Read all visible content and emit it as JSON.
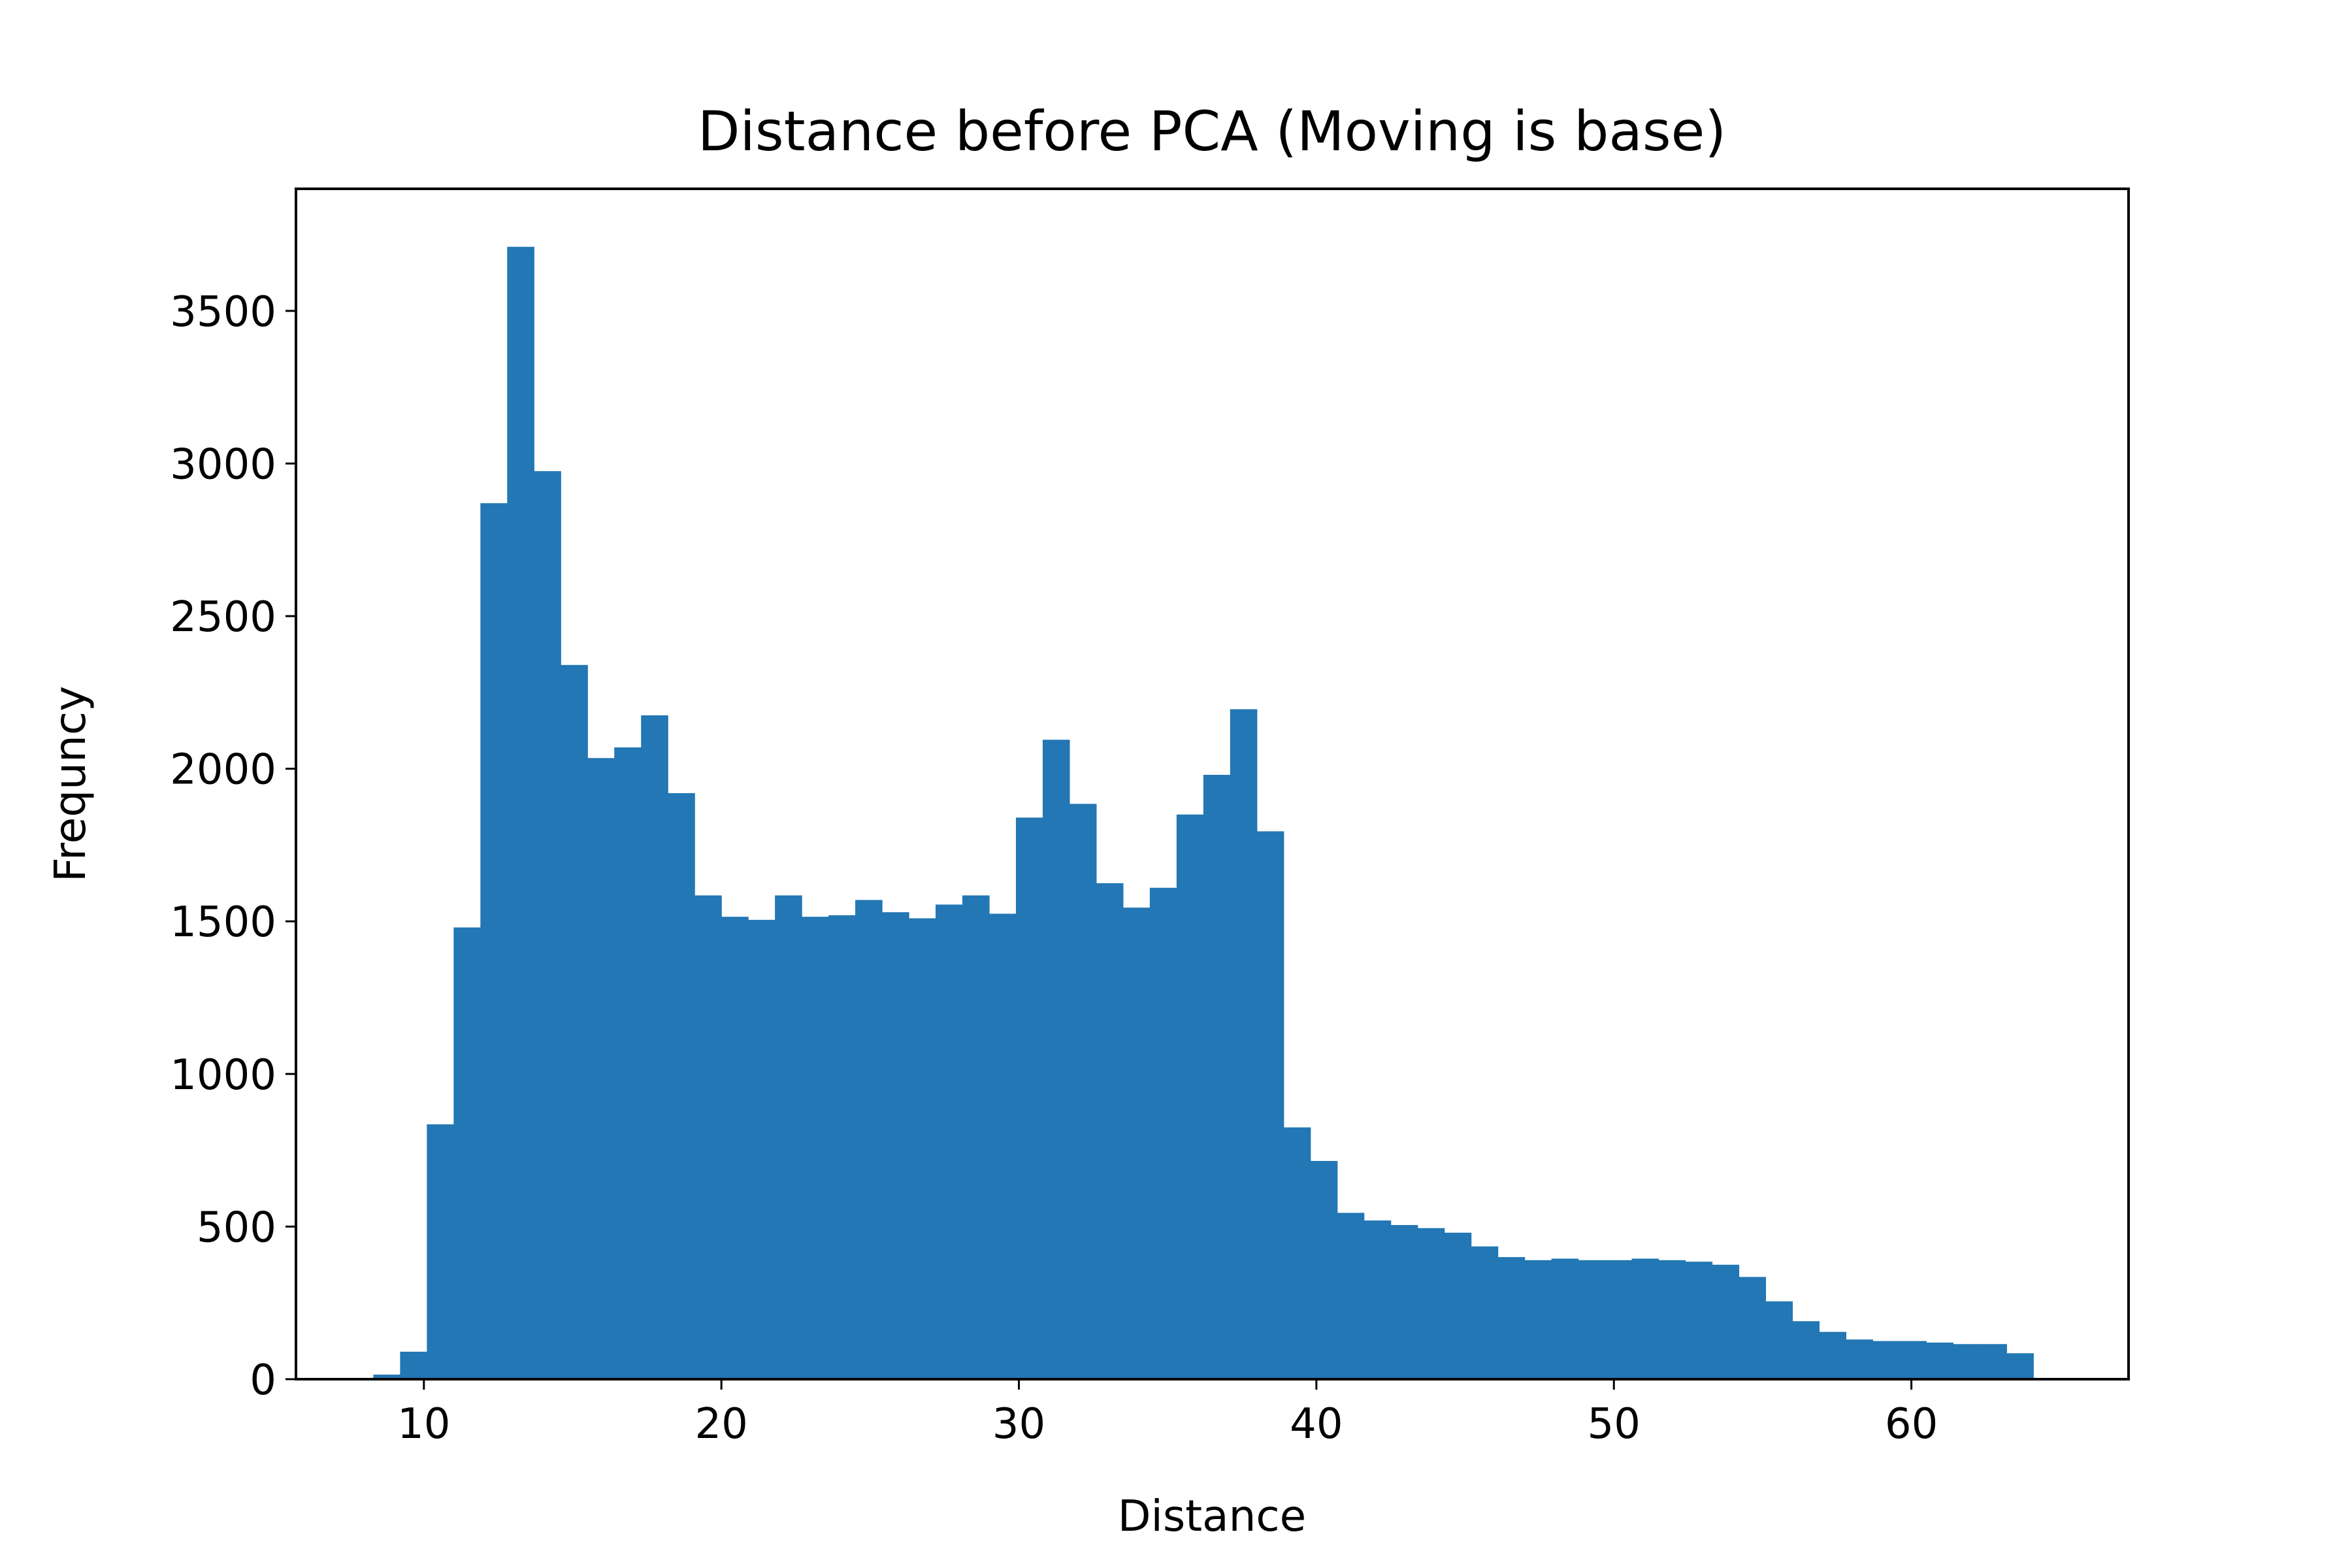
{
  "chart_data": {
    "type": "bar",
    "title": "Distance before PCA (Moving is base)",
    "xlabel": "Distance",
    "ylabel": "Frequncy",
    "xlim": [
      5.7,
      67.3
    ],
    "ylim": [
      0,
      3900
    ],
    "xticks": [
      10,
      20,
      30,
      40,
      50,
      60
    ],
    "yticks": [
      0,
      500,
      1000,
      1500,
      2000,
      2500,
      3000,
      3500
    ],
    "bin_start": 8.3,
    "bin_width": 0.9,
    "values": [
      15,
      90,
      835,
      1480,
      2870,
      3710,
      2975,
      2340,
      2035,
      2070,
      2175,
      1920,
      1585,
      1515,
      1505,
      1585,
      1515,
      1520,
      1570,
      1530,
      1510,
      1555,
      1585,
      1525,
      1840,
      2095,
      1885,
      1625,
      1545,
      1610,
      1850,
      1980,
      2195,
      1795,
      825,
      715,
      545,
      520,
      505,
      495,
      480,
      435,
      400,
      390,
      395,
      390,
      390,
      395,
      390,
      385,
      375,
      335,
      255,
      190,
      155,
      130,
      125,
      125,
      120,
      115,
      115,
      85
    ],
    "bar_color": "#2277b4",
    "grid": false,
    "legend": "none"
  }
}
